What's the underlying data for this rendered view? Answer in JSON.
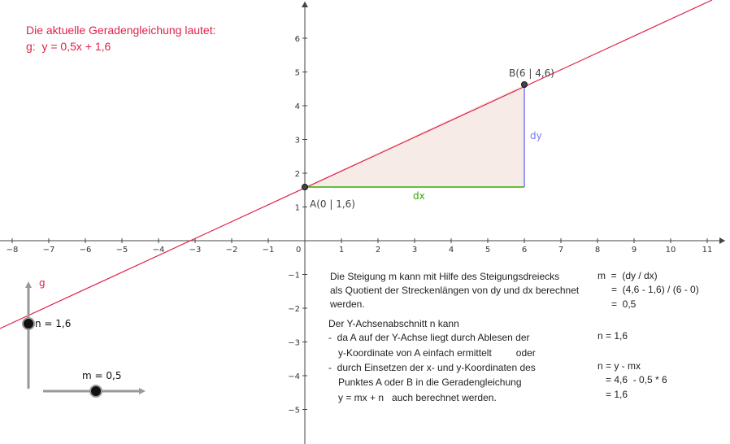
{
  "header": {
    "line1": "Die aktuelle Geradengleichung lautet:",
    "line2": "g:  y = 0,5x + 1,6"
  },
  "plot": {
    "x_ticks": [
      "−8",
      "−7",
      "−6",
      "−5",
      "−4",
      "−3",
      "−2",
      "−1",
      "1",
      "2",
      "3",
      "4",
      "5",
      "6",
      "7",
      "8",
      "9",
      "10",
      "11"
    ],
    "y_ticks": [
      "6",
      "5",
      "4",
      "3",
      "2",
      "1",
      "−1",
      "−2",
      "−3",
      "−4",
      "−5"
    ],
    "origin_label": "0",
    "point_a_label": "A(0 | 1,6)",
    "point_b_label": "B(6 | 4,6)",
    "dx_label": "dx",
    "dy_label": "dy",
    "line_label": "g",
    "colors": {
      "line": "#e0224a",
      "dx": "#33aa00",
      "dy": "#7777ff",
      "triangle": "#f6ebe7"
    }
  },
  "sliders": {
    "n": {
      "label": "n = 1,6",
      "value": 1.6
    },
    "m": {
      "label": "m = 0,5",
      "value": 0.5
    }
  },
  "explain": {
    "slope_line1": "Die Steigung m kann mit Hilfe des Steigungsdreiecks",
    "slope_line2": "als Quotient der Streckenlängen von dy und dx berechnet",
    "slope_line3": "werden.",
    "calc_m_1": "m  =  (dy / dx)",
    "calc_m_2": "=  (4,6 - 1,6) / (6 - 0)",
    "calc_m_3": "=  0,5",
    "n_head": "Der Y-Achsenabschnitt n kann",
    "n_line1": "-  da A auf der Y-Achse liegt durch Ablesen der",
    "n_line2": "y-Koordinate von A einfach ermittelt         oder",
    "n_line3": "-  durch Einsetzen der x- und y-Koordinaten des",
    "n_line4": "Punktes A oder B in die Geradengleichung",
    "n_line5": "y = mx + n   auch berechnet werden.",
    "calc_n_1": "n = 1,6",
    "calc_n_2": "n = y - mx",
    "calc_n_3": "= 4,6  - 0,5 * 6",
    "calc_n_4": "= 1,6"
  }
}
